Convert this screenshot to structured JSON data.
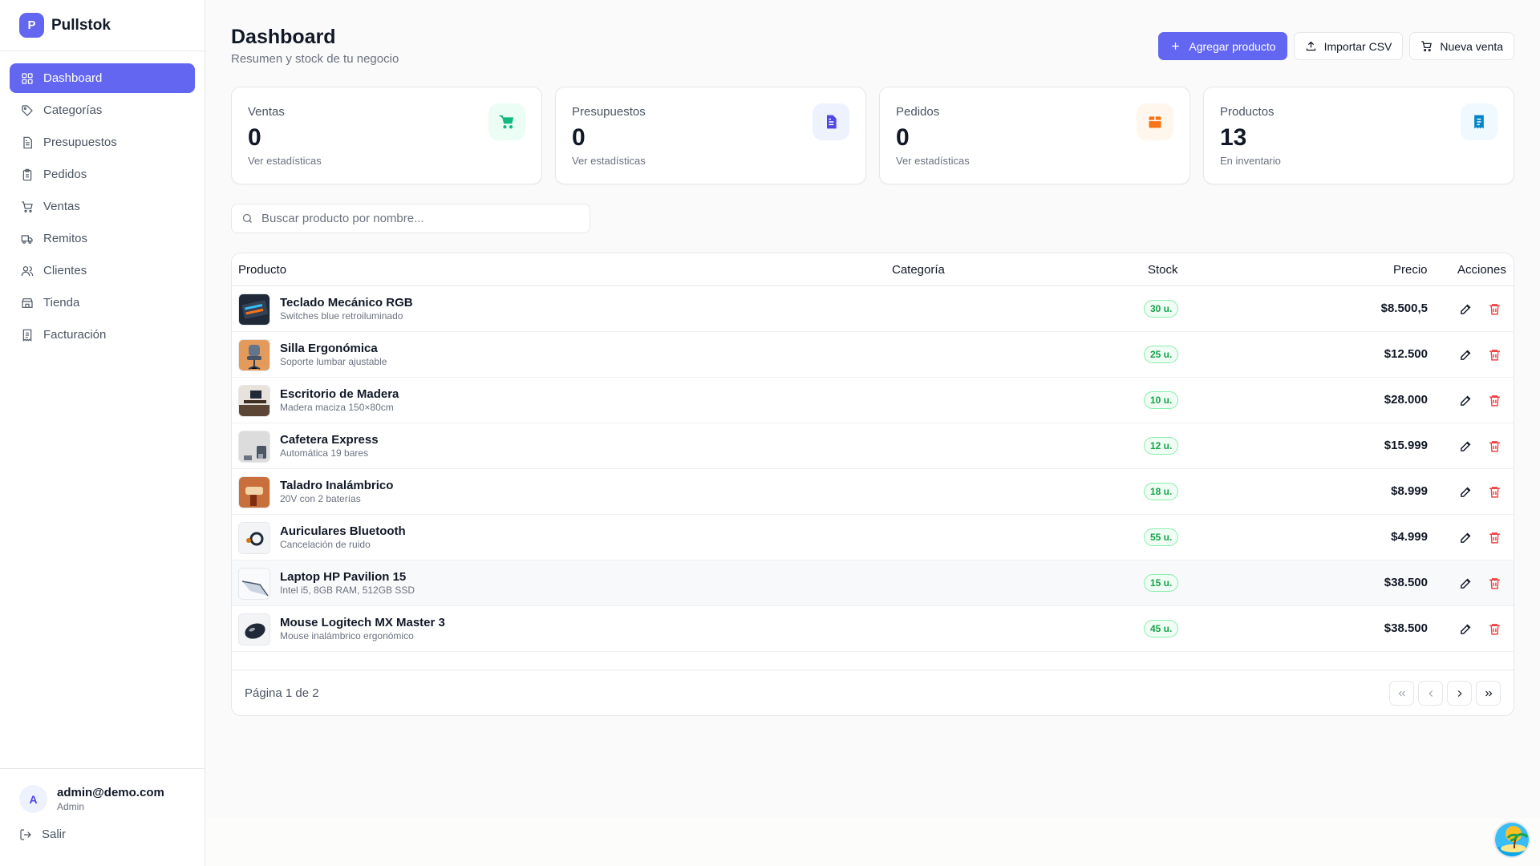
{
  "brand": {
    "logo_letter": "P",
    "name": "Pullstok"
  },
  "sidebar": {
    "items": [
      {
        "label": "Dashboard",
        "icon": "grid-icon",
        "active": true
      },
      {
        "label": "Categorías",
        "icon": "tag-icon"
      },
      {
        "label": "Presupuestos",
        "icon": "document-icon"
      },
      {
        "label": "Pedidos",
        "icon": "clipboard-icon"
      },
      {
        "label": "Ventas",
        "icon": "cart-icon"
      },
      {
        "label": "Remitos",
        "icon": "truck-icon"
      },
      {
        "label": "Clientes",
        "icon": "users-icon"
      },
      {
        "label": "Tienda",
        "icon": "store-icon"
      },
      {
        "label": "Facturación",
        "icon": "receipt-icon"
      }
    ],
    "user": {
      "initial": "A",
      "email": "admin@demo.com",
      "role": "Admin"
    },
    "logout_label": "Salir"
  },
  "header": {
    "title": "Dashboard",
    "subtitle": "Resumen y stock de tu negocio",
    "add_label": "Agregar producto",
    "import_label": "Importar CSV",
    "sale_label": "Nueva venta"
  },
  "cards": [
    {
      "label": "Ventas",
      "value": "0",
      "sub": "Ver estadísticas",
      "icon": "cart-icon",
      "color": "#10b981",
      "bg": "#ecfdf5"
    },
    {
      "label": "Presupuestos",
      "value": "0",
      "sub": "Ver estadísticas",
      "icon": "document-icon",
      "color": "#4f46e5",
      "bg": "#eef2ff"
    },
    {
      "label": "Pedidos",
      "value": "0",
      "sub": "Ver estadísticas",
      "icon": "box-icon",
      "color": "#f97316",
      "bg": "#fff7ed"
    },
    {
      "label": "Productos",
      "value": "13",
      "sub": "En inventario",
      "icon": "receipt-icon",
      "color": "#0284c7",
      "bg": "#f0f9ff"
    }
  ],
  "search": {
    "placeholder": "Buscar producto por nombre..."
  },
  "table": {
    "headers": {
      "product": "Producto",
      "category": "Categoría",
      "stock": "Stock",
      "price": "Precio",
      "actions": "Acciones"
    },
    "rows": [
      {
        "name": "Teclado Mecánico RGB",
        "desc": "Switches blue retroiluminado",
        "stock": "30 u.",
        "price": "$8.500,5"
      },
      {
        "name": "Silla Ergonómica",
        "desc": "Soporte lumbar ajustable",
        "stock": "25 u.",
        "price": "$12.500"
      },
      {
        "name": "Escritorio de Madera",
        "desc": "Madera maciza 150×80cm",
        "stock": "10 u.",
        "price": "$28.000"
      },
      {
        "name": "Cafetera Express",
        "desc": "Automática 19 bares",
        "stock": "12 u.",
        "price": "$15.999"
      },
      {
        "name": "Taladro Inalámbrico",
        "desc": "20V con 2 baterías",
        "stock": "18 u.",
        "price": "$8.999"
      },
      {
        "name": "Auriculares Bluetooth",
        "desc": "Cancelación de ruido",
        "stock": "55 u.",
        "price": "$4.999"
      },
      {
        "name": "Laptop HP Pavilion 15",
        "desc": "Intel i5, 8GB RAM, 512GB SSD",
        "stock": "15 u.",
        "price": "$38.500"
      },
      {
        "name": "Mouse Logitech MX Master 3",
        "desc": "Mouse inalámbrico ergonómico",
        "stock": "45 u.",
        "price": "$38.500"
      }
    ]
  },
  "pagination": {
    "info": "Página 1 de 2"
  }
}
